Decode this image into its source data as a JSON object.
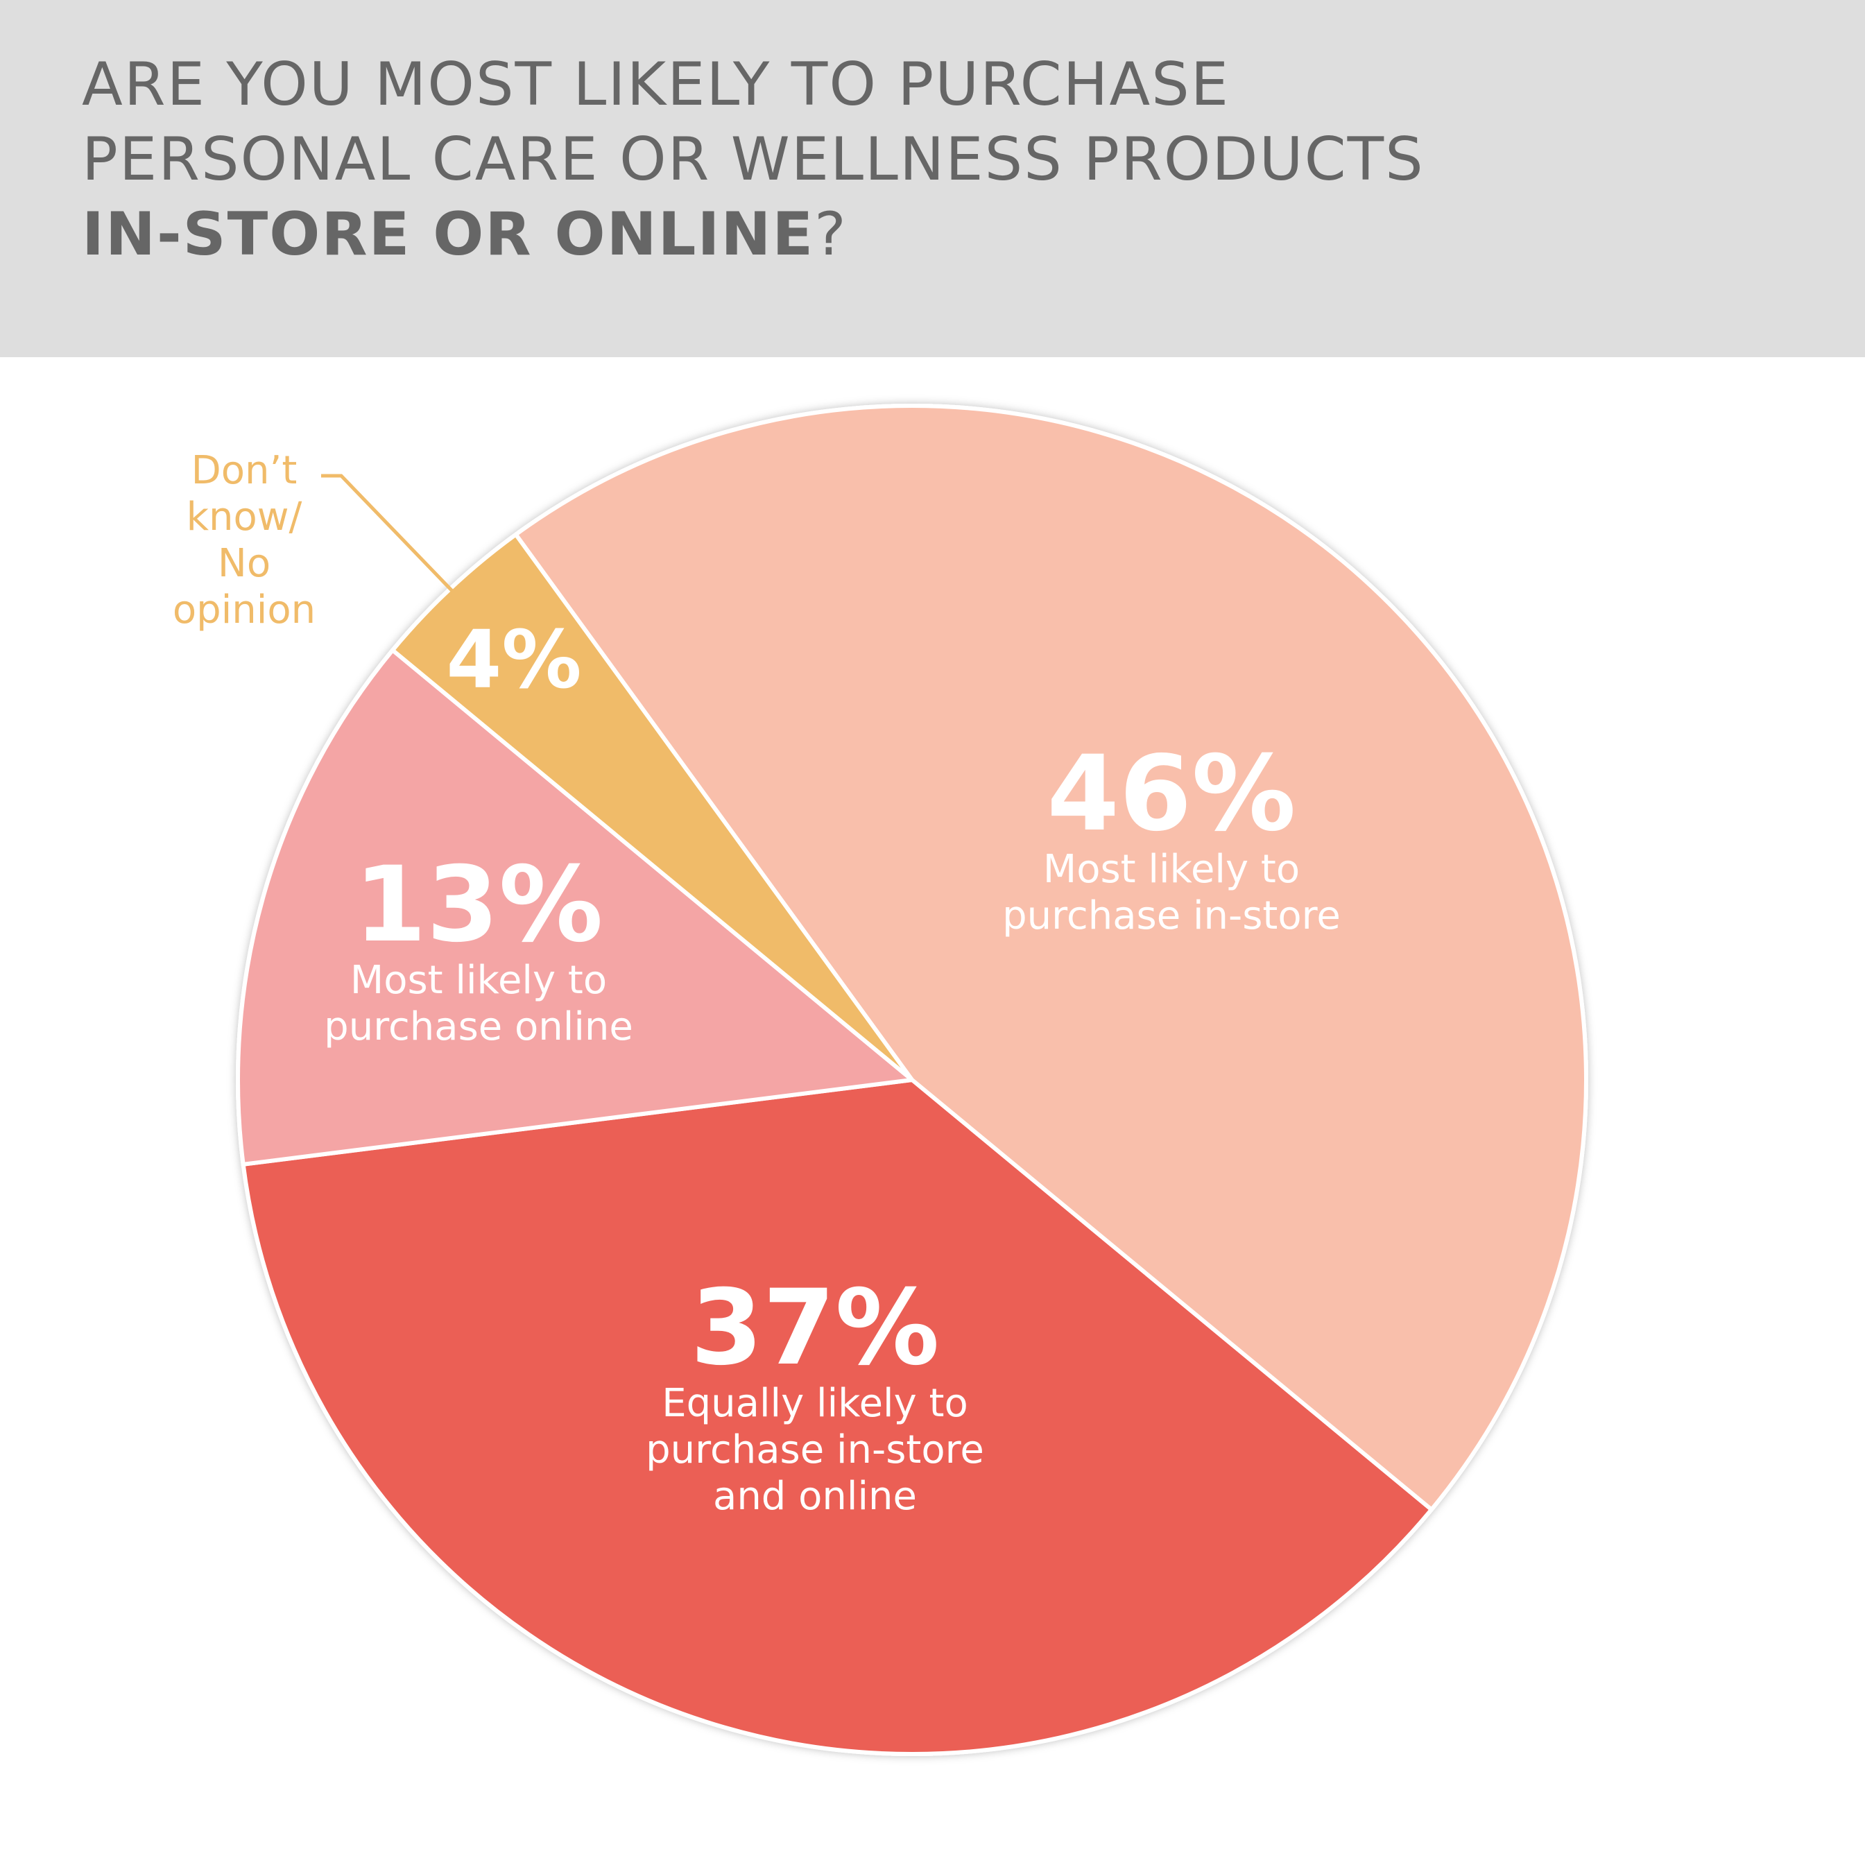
{
  "chart_data": {
    "type": "pie",
    "title_lines": [
      "ARE YOU MOST LIKELY TO PURCHASE",
      "PERSONAL CARE OR WELLNESS PRODUCTS"
    ],
    "title_emphasis": "IN-STORE OR ONLINE",
    "title_end": "?",
    "categories": [
      "Most likely to purchase in-store",
      "Equally likely to purchase in-store and online",
      "Most likely to purchase online",
      "Don’t know/ No opinion"
    ],
    "values": [
      46,
      37,
      13,
      4
    ],
    "value_labels": [
      "46%",
      "37%",
      "13%",
      "4%"
    ],
    "colors": [
      "#f9bfab",
      "#eb5f55",
      "#f4a5a5",
      "#f0bb69"
    ]
  }
}
